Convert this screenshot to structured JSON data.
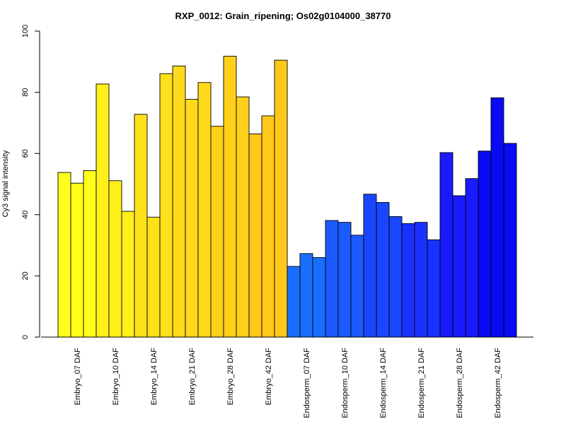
{
  "chart_data": {
    "type": "bar",
    "title": "RXP_0012: Grain_ripening; Os02g0104000_38770",
    "xlabel": "",
    "ylabel": "Cy3 signal intensity",
    "ylim": [
      0,
      100
    ],
    "yticks": [
      0,
      20,
      40,
      60,
      80,
      100
    ],
    "categories": [
      "Embryo_07 DAF",
      "Embryo_10 DAF",
      "Embryo_14 DAF",
      "Embryo_21 DAF",
      "Embryo_28 DAF",
      "Embryo_42 DAF",
      "Endosperm_07 DAF",
      "Endosperm_10 DAF",
      "Endosperm_14 DAF",
      "Endosperm_21 DAF",
      "Endosperm_28 DAF",
      "Endosperm_42 DAF"
    ],
    "replicates_per_category": 3,
    "values": [
      [
        53.8,
        50.3,
        54.4
      ],
      [
        82.7,
        51.1,
        41.1
      ],
      [
        72.8,
        39.2,
        86.1
      ],
      [
        88.6,
        77.7,
        83.2
      ],
      [
        68.9,
        91.8,
        78.5
      ],
      [
        66.4,
        72.3,
        90.5
      ],
      [
        23.1,
        27.3,
        26.0
      ],
      [
        38.1,
        37.5,
        33.3
      ],
      [
        46.7,
        44.0,
        39.4
      ],
      [
        37.1,
        37.5,
        31.8
      ],
      [
        60.3,
        46.2,
        51.8
      ],
      [
        60.8,
        78.2,
        63.3
      ]
    ],
    "colors": [
      "#FFFF1A",
      "#FFF01A",
      "#FFE11A",
      "#FFD91A",
      "#FFD01A",
      "#FFC81A",
      "#1A6EFF",
      "#1A5AFF",
      "#1A46FF",
      "#1A32FF",
      "#1A1AFF",
      "#0A0AF5"
    ],
    "grid": false,
    "legend": "none"
  }
}
